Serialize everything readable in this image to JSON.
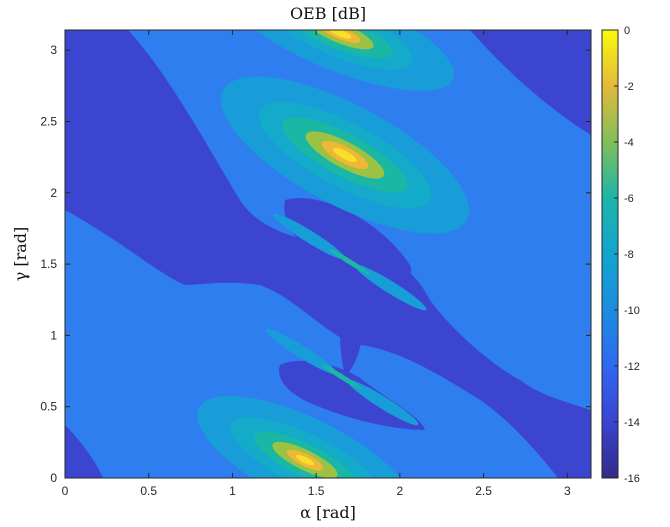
{
  "chart_data": {
    "type": "heatmap",
    "subtype": "filled-contour",
    "title": "OEB [dB]",
    "xlabel": "α [rad]",
    "ylabel": "γ [rad]",
    "xlim": [
      0,
      3.1416
    ],
    "ylim": [
      0,
      3.1416
    ],
    "xticks": [
      0,
      0.5,
      1,
      1.5,
      2,
      2.5,
      3
    ],
    "xtick_labels": [
      "0",
      "0.5",
      "1",
      "1.5",
      "2",
      "2.5",
      "3"
    ],
    "yticks": [
      0,
      0.5,
      1,
      1.5,
      2,
      2.5,
      3
    ],
    "ytick_labels": [
      "0",
      "0.5",
      "1",
      "1.5",
      "2",
      "2.5",
      "3"
    ],
    "colorbar": {
      "range": [
        -16,
        0
      ],
      "ticks": [
        0,
        -2,
        -4,
        -6,
        -8,
        -10,
        -12,
        -14,
        -16
      ],
      "tick_labels": [
        "0",
        "-2",
        "-4",
        "-6",
        "-8",
        "-10",
        "-12",
        "-14",
        "-16"
      ],
      "colormap": "parula",
      "placement": "right"
    },
    "levels": [
      {
        "value": -14.5,
        "color": "#3b45d0"
      },
      {
        "value": -13.0,
        "color": "#2e7ef0"
      },
      {
        "value": -10.5,
        "color": "#189dd9"
      },
      {
        "value": -9.0,
        "color": "#14aac9"
      },
      {
        "value": -7.5,
        "color": "#1bb7a5"
      },
      {
        "value": -5.0,
        "color": "#9bc243"
      },
      {
        "value": -3.0,
        "color": "#f0b736"
      },
      {
        "value": -1.0,
        "color": "#f9e028"
      }
    ],
    "features": [
      {
        "kind": "peak",
        "alpha": 1.6,
        "gamma": 3.1,
        "peak_db": -1
      },
      {
        "kind": "peak",
        "alpha": 1.68,
        "gamma": 2.3,
        "peak_db": -1
      },
      {
        "kind": "peak",
        "alpha": 1.52,
        "gamma": 0.05,
        "peak_db": -1
      },
      {
        "kind": "saddle",
        "alpha": 1.7,
        "gamma": 1.48
      },
      {
        "kind": "saddle",
        "alpha": 1.65,
        "gamma": 0.72
      }
    ],
    "grid": false,
    "legend": "none"
  }
}
